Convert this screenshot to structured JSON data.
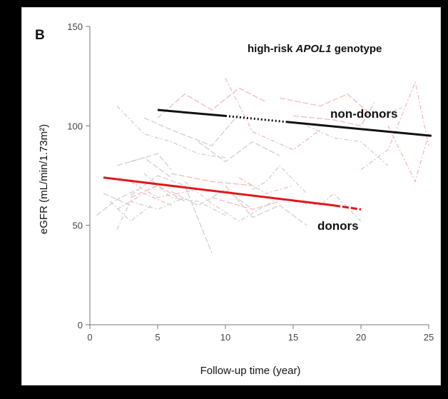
{
  "panel_label": "B",
  "chart_data": {
    "type": "line",
    "title_prefix": "high-risk ",
    "title_italic": "APOL1",
    "title_suffix": " genotype",
    "xlabel": "Follow-up time (year)",
    "ylabel": "eGFR (mL/min/1.73m²)",
    "xlim": [
      0,
      25
    ],
    "ylim": [
      0,
      150
    ],
    "x_ticks": [
      "0",
      "5",
      "10",
      "15",
      "20",
      "25"
    ],
    "y_ticks": [
      "0",
      "50",
      "100",
      "150"
    ],
    "grid": false,
    "series": [
      {
        "name": "non-donors",
        "color": "#111111",
        "segments": [
          {
            "style": "solid",
            "x": [
              5,
              10
            ],
            "y": [
              108,
              105
            ]
          },
          {
            "style": "dotted",
            "x": [
              10,
              14.5
            ],
            "y": [
              105,
              102
            ]
          },
          {
            "style": "solid",
            "x": [
              14.5,
              25.2
            ],
            "y": [
              102,
              95
            ]
          }
        ]
      },
      {
        "name": "donors",
        "color": "#e0171c",
        "segments": [
          {
            "style": "solid",
            "x": [
              1,
              18
            ],
            "y": [
              74,
              60
            ]
          },
          {
            "style": "dashed",
            "x": [
              18,
              20
            ],
            "y": [
              60,
              58
            ]
          }
        ]
      }
    ],
    "background_individual_trajectories": [
      {
        "color": "#f4b4b4",
        "x": [
          5,
          7,
          9,
          11,
          13
        ],
        "y": [
          104,
          116,
          108,
          119,
          112
        ]
      },
      {
        "color": "#f4b4b4",
        "x": [
          10,
          12,
          15,
          17
        ],
        "y": [
          124,
          97,
          88,
          98
        ]
      },
      {
        "color": "#f4b4b4",
        "x": [
          14,
          17,
          19,
          21,
          23
        ],
        "y": [
          114,
          110,
          116,
          104,
          109
        ]
      },
      {
        "color": "#f4b4b4",
        "x": [
          20,
          22,
          24,
          25
        ],
        "y": [
          78,
          88,
          122,
          90
        ]
      },
      {
        "color": "#f4b4b4",
        "x": [
          15,
          18,
          20,
          21
        ],
        "y": [
          105,
          103,
          100,
          112
        ]
      },
      {
        "color": "#f4b4b4",
        "x": [
          22,
          24,
          25
        ],
        "y": [
          100,
          72,
          96
        ]
      },
      {
        "color": "#f4b4b4",
        "x": [
          3,
          5,
          7
        ],
        "y": [
          64,
          70,
          62
        ]
      },
      {
        "color": "#f4b4b4",
        "x": [
          2,
          4,
          6
        ],
        "y": [
          58,
          66,
          60
        ]
      },
      {
        "color": "#f4b4b4",
        "x": [
          9,
          12,
          14
        ],
        "y": [
          64,
          58,
          62
        ]
      },
      {
        "color": "#f4b4b4",
        "x": [
          11,
          13,
          15
        ],
        "y": [
          74,
          66,
          70
        ]
      },
      {
        "color": "#f4b4b4",
        "x": [
          6,
          9,
          12
        ],
        "y": [
          76,
          72,
          70
        ]
      },
      {
        "color": "#f4b4b4",
        "x": [
          3,
          5,
          8
        ],
        "y": [
          72,
          64,
          68
        ]
      },
      {
        "color": "#cccccc",
        "x": [
          0.5,
          2,
          3.5
        ],
        "y": [
          55,
          63,
          68
        ]
      },
      {
        "color": "#cccccc",
        "x": [
          2,
          3,
          5,
          7
        ],
        "y": [
          48,
          62,
          58,
          64
        ]
      },
      {
        "color": "#cccccc",
        "x": [
          3,
          5,
          7,
          9
        ],
        "y": [
          65,
          75,
          70,
          36
        ]
      },
      {
        "color": "#cccccc",
        "x": [
          4,
          6,
          8,
          10
        ],
        "y": [
          76,
          64,
          62,
          55
        ]
      },
      {
        "color": "#cccccc",
        "x": [
          6,
          8,
          10,
          12
        ],
        "y": [
          67,
          60,
          68,
          58
        ]
      },
      {
        "color": "#cccccc",
        "x": [
          7,
          9,
          11,
          14
        ],
        "y": [
          72,
          61,
          52,
          64
        ]
      },
      {
        "color": "#cccccc",
        "x": [
          10,
          12,
          14,
          16
        ],
        "y": [
          70,
          54,
          60,
          50
        ]
      },
      {
        "color": "#cccccc",
        "x": [
          12,
          13,
          14,
          16
        ],
        "y": [
          68,
          72,
          80,
          66
        ]
      },
      {
        "color": "#cccccc",
        "x": [
          2,
          4,
          6
        ],
        "y": [
          80,
          84,
          74
        ]
      },
      {
        "color": "#cccccc",
        "x": [
          1.5,
          3,
          4.5
        ],
        "y": [
          62,
          52,
          60
        ]
      },
      {
        "color": "#cccccc",
        "x": [
          1,
          3
        ],
        "y": [
          66,
          60
        ]
      },
      {
        "color": "#cccccc",
        "x": [
          15,
          17,
          18,
          20
        ],
        "y": [
          62,
          60,
          66,
          52
        ]
      },
      {
        "color": "#cccccc",
        "x": [
          4,
          6,
          9,
          11
        ],
        "y": [
          104,
          98,
          90,
          106
        ]
      },
      {
        "color": "#cccccc",
        "x": [
          2,
          4,
          6,
          8,
          10
        ],
        "y": [
          110,
          96,
          92,
          86,
          84
        ]
      },
      {
        "color": "#cccccc",
        "x": [
          8,
          10,
          12,
          14
        ],
        "y": [
          92,
          82,
          92,
          85
        ]
      },
      {
        "color": "#cccccc",
        "x": [
          16,
          18,
          20,
          22
        ],
        "y": [
          100,
          94,
          92,
          80
        ]
      },
      {
        "color": "#cccccc",
        "x": [
          3,
          5,
          6
        ],
        "y": [
          82,
          86,
          78
        ]
      }
    ]
  }
}
